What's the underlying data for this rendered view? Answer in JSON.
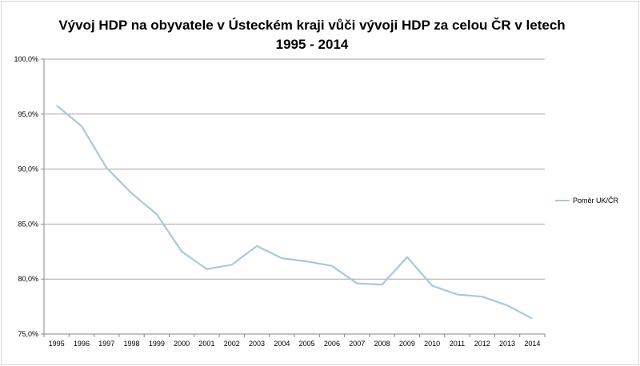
{
  "chart_data": {
    "type": "line",
    "title": "Vývoj HDP na obyvatele v Ústeckém kraji vůči vývoji HDP za celou ČR v letech 1995 - 2014",
    "categories": [
      "1995",
      "1996",
      "1997",
      "1998",
      "1999",
      "2000",
      "2001",
      "2002",
      "2003",
      "2004",
      "2005",
      "2006",
      "2007",
      "2008",
      "2009",
      "2010",
      "2011",
      "2012",
      "2013",
      "2014"
    ],
    "series": [
      {
        "name": "Poměr UK/ČR",
        "values": [
          95.8,
          93.9,
          90.1,
          87.8,
          85.9,
          82.5,
          80.9,
          81.3,
          83.0,
          81.9,
          81.6,
          81.2,
          79.6,
          79.5,
          82.0,
          79.4,
          78.6,
          78.4,
          77.6,
          76.4
        ]
      }
    ],
    "ylim": [
      75,
      100
    ],
    "yticks": [
      "75,0%",
      "80,0%",
      "85,0%",
      "90,0%",
      "95,0%",
      "100,0%"
    ],
    "grid": true,
    "legend": "right",
    "colors": {
      "series": "#a9c8dc",
      "grid": "#a6a6a6",
      "axis": "#868686"
    }
  }
}
